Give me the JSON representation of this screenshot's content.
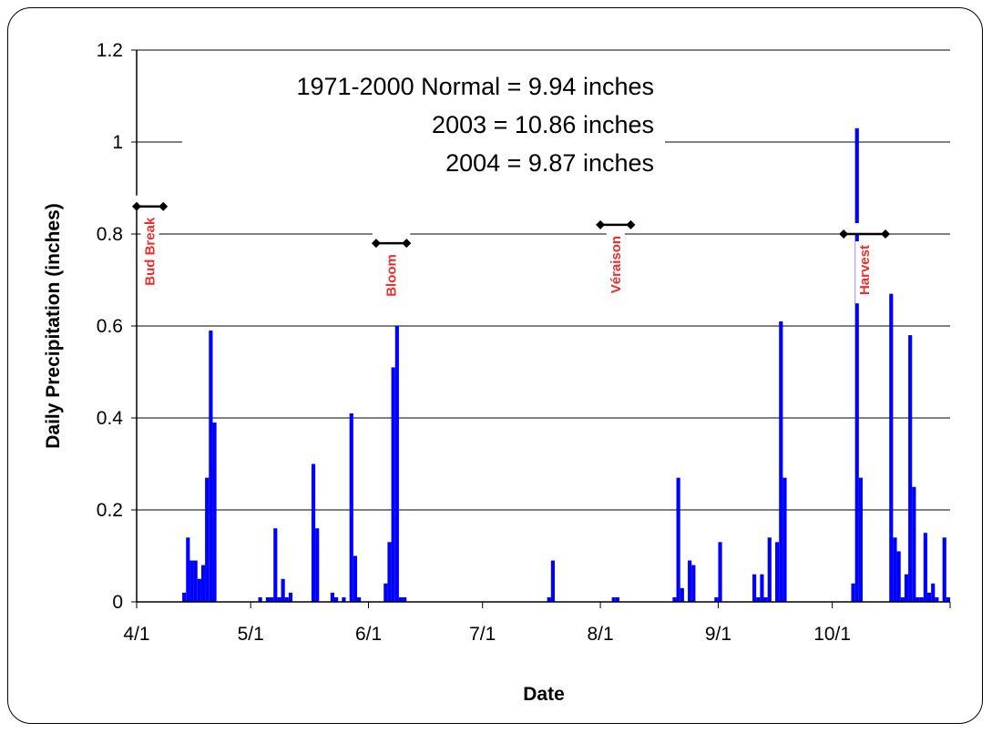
{
  "chart_data": {
    "type": "bar",
    "title": "",
    "xlabel": "Date",
    "ylabel": "Daily Precipitation (inches)",
    "ylim": [
      0,
      1.2
    ],
    "yticks": [
      "0",
      "0.2",
      "0.4",
      "0.6",
      "0.8",
      "1",
      "1.2"
    ],
    "xlim": [
      "2004-04-01",
      "2004-10-31"
    ],
    "xticks": [
      {
        "label": "4/1",
        "date": "2004-04-01"
      },
      {
        "label": "5/1",
        "date": "2004-05-01"
      },
      {
        "label": "6/1",
        "date": "2004-06-01"
      },
      {
        "label": "7/1",
        "date": "2004-07-01"
      },
      {
        "label": "8/1",
        "date": "2004-08-01"
      },
      {
        "label": "9/1",
        "date": "2004-09-01"
      },
      {
        "label": "10/1",
        "date": "2004-10-01"
      }
    ],
    "grid": true,
    "series_color": "#0000ff",
    "points": [
      {
        "x": "2004-04-13",
        "y": 0.02
      },
      {
        "x": "2004-04-14",
        "y": 0.14
      },
      {
        "x": "2004-04-15",
        "y": 0.09
      },
      {
        "x": "2004-04-16",
        "y": 0.09
      },
      {
        "x": "2004-04-17",
        "y": 0.05
      },
      {
        "x": "2004-04-18",
        "y": 0.08
      },
      {
        "x": "2004-04-19",
        "y": 0.27
      },
      {
        "x": "2004-04-20",
        "y": 0.59
      },
      {
        "x": "2004-04-21",
        "y": 0.39
      },
      {
        "x": "2004-05-03",
        "y": 0.01
      },
      {
        "x": "2004-05-05",
        "y": 0.01
      },
      {
        "x": "2004-05-06",
        "y": 0.01
      },
      {
        "x": "2004-05-07",
        "y": 0.16
      },
      {
        "x": "2004-05-08",
        "y": 0.01
      },
      {
        "x": "2004-05-09",
        "y": 0.05
      },
      {
        "x": "2004-05-10",
        "y": 0.01
      },
      {
        "x": "2004-05-11",
        "y": 0.02
      },
      {
        "x": "2004-05-17",
        "y": 0.3
      },
      {
        "x": "2004-05-18",
        "y": 0.16
      },
      {
        "x": "2004-05-22",
        "y": 0.02
      },
      {
        "x": "2004-05-23",
        "y": 0.01
      },
      {
        "x": "2004-05-25",
        "y": 0.01
      },
      {
        "x": "2004-05-27",
        "y": 0.41
      },
      {
        "x": "2004-05-28",
        "y": 0.1
      },
      {
        "x": "2004-05-29",
        "y": 0.01
      },
      {
        "x": "2004-06-05",
        "y": 0.04
      },
      {
        "x": "2004-06-06",
        "y": 0.13
      },
      {
        "x": "2004-06-07",
        "y": 0.51
      },
      {
        "x": "2004-06-08",
        "y": 0.6
      },
      {
        "x": "2004-06-09",
        "y": 0.01
      },
      {
        "x": "2004-06-10",
        "y": 0.01
      },
      {
        "x": "2004-07-18",
        "y": 0.01
      },
      {
        "x": "2004-07-19",
        "y": 0.09
      },
      {
        "x": "2004-08-04",
        "y": 0.01
      },
      {
        "x": "2004-08-05",
        "y": 0.01
      },
      {
        "x": "2004-08-20",
        "y": 0.01
      },
      {
        "x": "2004-08-21",
        "y": 0.27
      },
      {
        "x": "2004-08-22",
        "y": 0.03
      },
      {
        "x": "2004-08-24",
        "y": 0.09
      },
      {
        "x": "2004-08-25",
        "y": 0.08
      },
      {
        "x": "2004-08-31",
        "y": 0.01
      },
      {
        "x": "2004-09-01",
        "y": 0.13
      },
      {
        "x": "2004-09-10",
        "y": 0.06
      },
      {
        "x": "2004-09-11",
        "y": 0.01
      },
      {
        "x": "2004-09-12",
        "y": 0.06
      },
      {
        "x": "2004-09-13",
        "y": 0.01
      },
      {
        "x": "2004-09-14",
        "y": 0.14
      },
      {
        "x": "2004-09-16",
        "y": 0.13
      },
      {
        "x": "2004-09-17",
        "y": 0.61
      },
      {
        "x": "2004-09-18",
        "y": 0.27
      },
      {
        "x": "2004-10-06",
        "y": 0.04
      },
      {
        "x": "2004-10-07",
        "y": 1.03
      },
      {
        "x": "2004-10-08",
        "y": 0.27
      },
      {
        "x": "2004-10-16",
        "y": 0.67
      },
      {
        "x": "2004-10-17",
        "y": 0.14
      },
      {
        "x": "2004-10-18",
        "y": 0.11
      },
      {
        "x": "2004-10-19",
        "y": 0.01
      },
      {
        "x": "2004-10-20",
        "y": 0.06
      },
      {
        "x": "2004-10-21",
        "y": 0.58
      },
      {
        "x": "2004-10-22",
        "y": 0.25
      },
      {
        "x": "2004-10-23",
        "y": 0.01
      },
      {
        "x": "2004-10-24",
        "y": 0.01
      },
      {
        "x": "2004-10-25",
        "y": 0.15
      },
      {
        "x": "2004-10-26",
        "y": 0.02
      },
      {
        "x": "2004-10-27",
        "y": 0.04
      },
      {
        "x": "2004-10-28",
        "y": 0.01
      },
      {
        "x": "2004-10-30",
        "y": 0.14
      },
      {
        "x": "2004-10-31",
        "y": 0.01
      }
    ],
    "stages": [
      {
        "label": "Bud Break",
        "start": "2004-04-01",
        "end": "2004-04-08",
        "y": 0.86
      },
      {
        "label": "Bloom",
        "start": "2004-06-03",
        "end": "2004-06-11",
        "y": 0.78
      },
      {
        "label": "Véraison",
        "start": "2004-08-01",
        "end": "2004-08-09",
        "y": 0.82
      },
      {
        "label": "Harvest",
        "start": "2004-10-04",
        "end": "2004-10-15",
        "y": 0.8
      }
    ],
    "annotations": [
      "1971-2000 Normal = 9.94 inches",
      "2003 = 10.86 inches",
      "2004 = 9.87 inches"
    ]
  }
}
